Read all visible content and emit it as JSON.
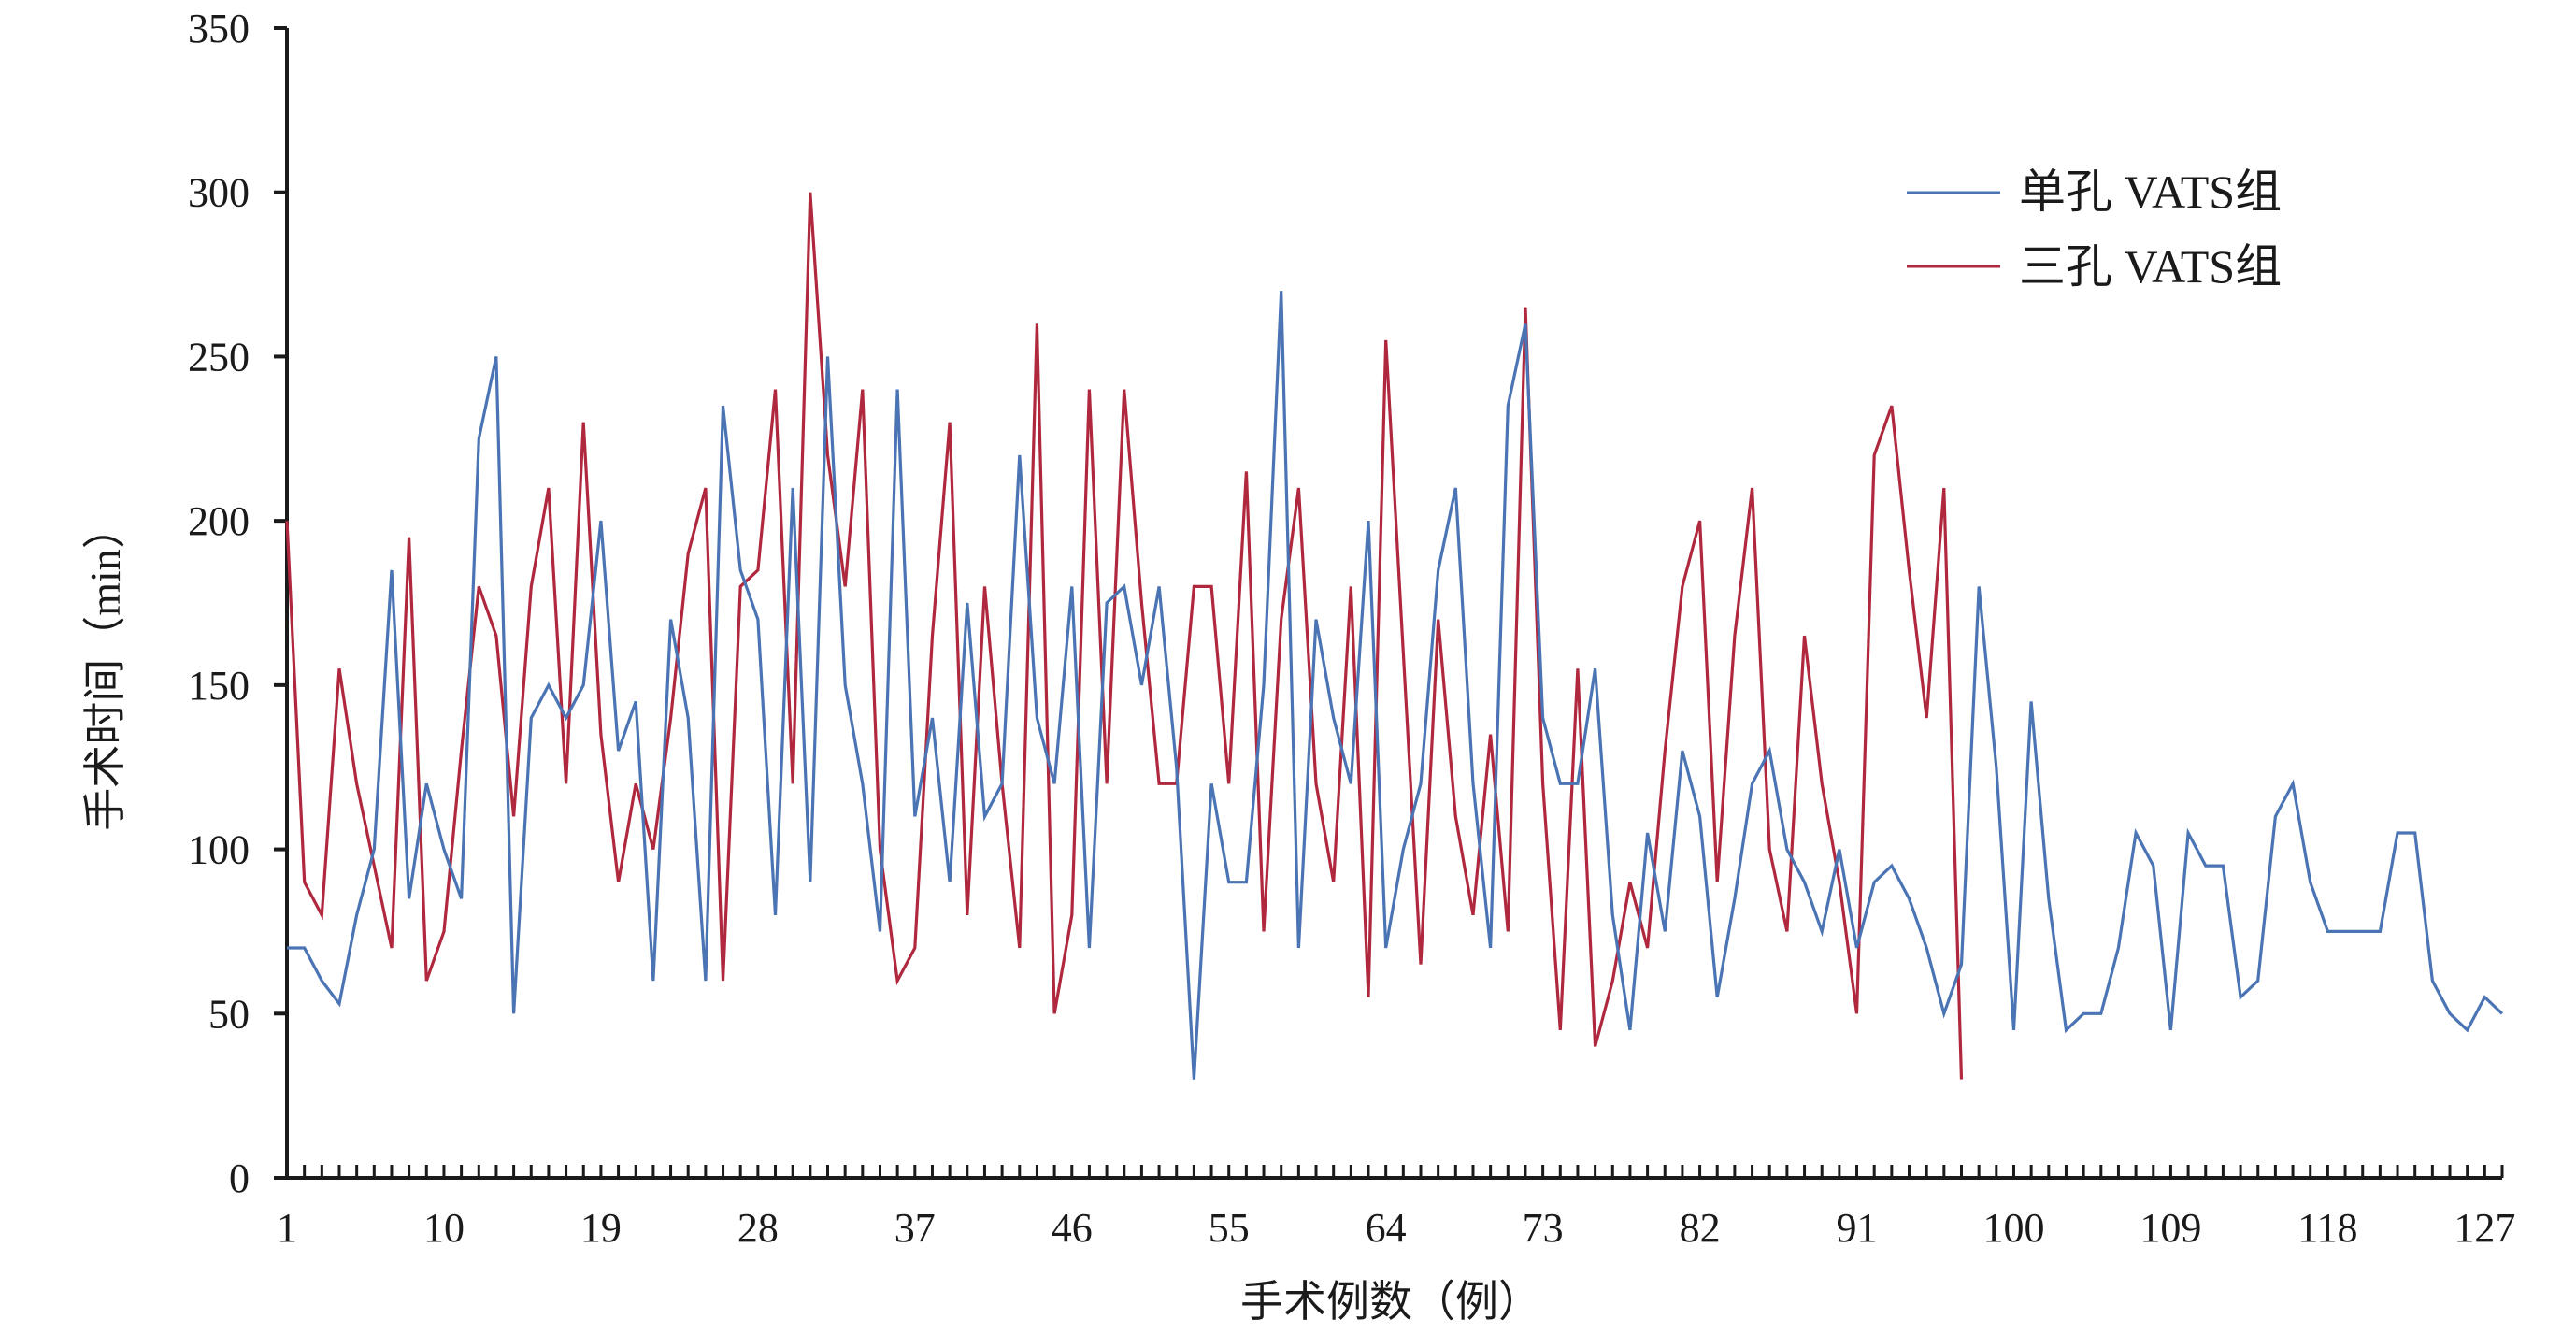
{
  "chart_data": {
    "type": "line",
    "title": "",
    "xlabel": "手术例数（例）",
    "ylabel": "手术时间（min）",
    "ylim": [
      0,
      350
    ],
    "yticks": [
      0,
      50,
      100,
      150,
      200,
      250,
      300,
      350
    ],
    "xlim": [
      1,
      128
    ],
    "xticks": [
      1,
      10,
      19,
      28,
      37,
      46,
      55,
      64,
      73,
      82,
      91,
      100,
      109,
      118,
      127
    ],
    "grid": false,
    "legend_position": "top-right",
    "series": [
      {
        "name": "单孔 VATS组",
        "color": "#4a74b4",
        "values": [
          70,
          70,
          60,
          53,
          80,
          100,
          185,
          85,
          120,
          100,
          85,
          225,
          250,
          50,
          140,
          150,
          140,
          150,
          200,
          130,
          145,
          60,
          170,
          140,
          60,
          235,
          185,
          170,
          80,
          210,
          90,
          250,
          150,
          120,
          75,
          240,
          110,
          140,
          90,
          175,
          110,
          120,
          220,
          140,
          120,
          180,
          70,
          175,
          180,
          150,
          180,
          125,
          30,
          120,
          90,
          90,
          150,
          270,
          70,
          170,
          140,
          120,
          200,
          70,
          100,
          120,
          185,
          210,
          120,
          70,
          235,
          260,
          140,
          120,
          120,
          155,
          80,
          45,
          105,
          75,
          130,
          110,
          55,
          85,
          120,
          130,
          100,
          90,
          75,
          100,
          70,
          90,
          95,
          85,
          70,
          50,
          65,
          180,
          125,
          45,
          145,
          85,
          45,
          50,
          50,
          70,
          105,
          95,
          45,
          105,
          95,
          95,
          55,
          60,
          110,
          120,
          90,
          75,
          75,
          75,
          75,
          105,
          105,
          60,
          50,
          45,
          55,
          50
        ]
      },
      {
        "name": "三孔 VATS组",
        "color": "#b0283e",
        "values": [
          200,
          90,
          80,
          155,
          120,
          95,
          70,
          195,
          60,
          75,
          130,
          180,
          165,
          110,
          180,
          210,
          120,
          230,
          135,
          90,
          120,
          100,
          140,
          190,
          210,
          60,
          180,
          185,
          240,
          120,
          300,
          220,
          180,
          240,
          100,
          60,
          70,
          165,
          230,
          80,
          180,
          120,
          70,
          260,
          50,
          80,
          240,
          120,
          240,
          175,
          120,
          120,
          180,
          180,
          120,
          215,
          75,
          170,
          210,
          120,
          90,
          180,
          55,
          255,
          160,
          65,
          170,
          110,
          80,
          135,
          75,
          265,
          120,
          45,
          155,
          40,
          60,
          90,
          70,
          130,
          180,
          200,
          90,
          165,
          210,
          100,
          75,
          165,
          120,
          90,
          50,
          220,
          235,
          185,
          140,
          210,
          30
        ]
      }
    ]
  }
}
